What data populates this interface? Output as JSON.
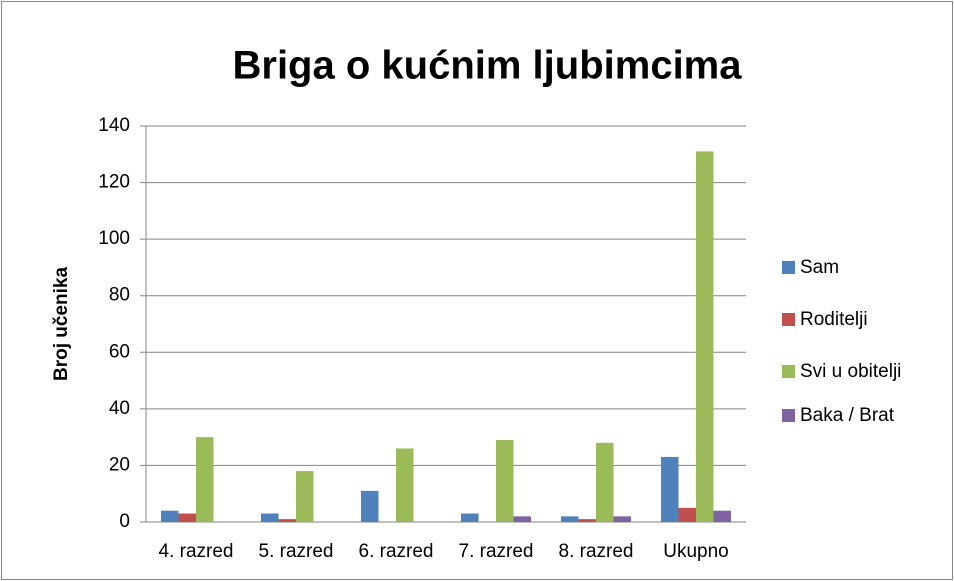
{
  "chart_data": {
    "type": "bar",
    "title": "Briga o kućnim ljubimcima",
    "y_label": "Broj učenika",
    "categories": [
      "4. razred",
      "5. razred",
      "6. razred",
      "7. razred",
      "8. razred",
      "Ukupno"
    ],
    "series": [
      {
        "name": "Sam",
        "color": "#4f81bd",
        "values": [
          4,
          3,
          11,
          3,
          2,
          23
        ]
      },
      {
        "name": "Roditelji",
        "color": "#c0504d",
        "values": [
          3,
          1,
          0,
          0,
          1,
          5
        ]
      },
      {
        "name": "Svi u obitelji",
        "color": "#9bbb59",
        "values": [
          30,
          18,
          26,
          29,
          28,
          131
        ]
      },
      {
        "name": "Baka / Brat",
        "color": "#8064a2",
        "values": [
          0,
          0,
          0,
          2,
          2,
          4
        ]
      }
    ],
    "ylim": [
      0,
      140
    ],
    "yticks": [
      0,
      20,
      40,
      60,
      80,
      100,
      120,
      140
    ],
    "grid": true,
    "legend": "right"
  }
}
